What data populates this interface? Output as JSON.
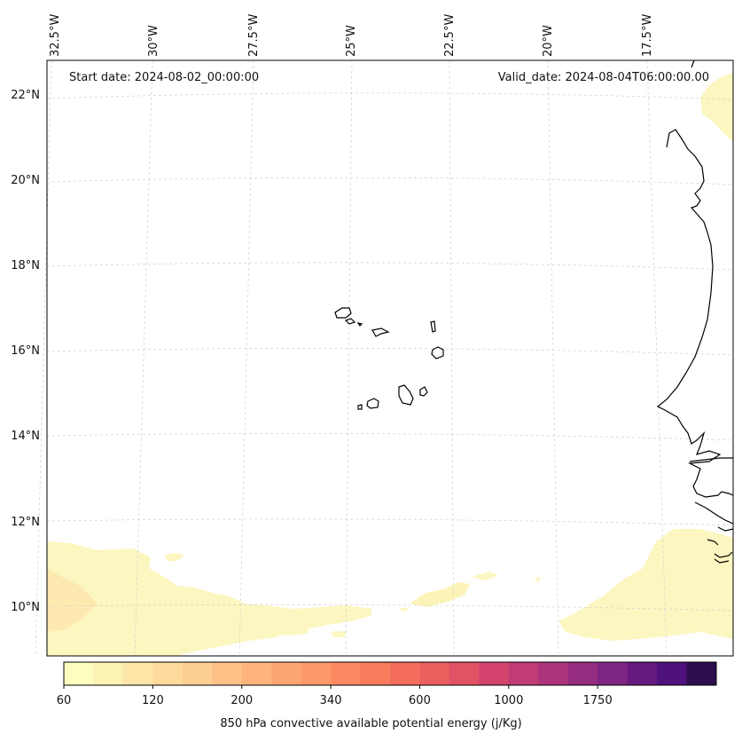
{
  "header": {
    "start_date": "Start date: 2024-08-02_00:00:00",
    "valid_date": "Valid_date: 2024-08-04T06:00:00.00"
  },
  "axes": {
    "lon_labels": [
      "32.5°W",
      "30°W",
      "27.5°W",
      "25°W",
      "22.5°W",
      "20°W",
      "17.5°W"
    ],
    "lat_labels": [
      "22°N",
      "20°N",
      "18°N",
      "16°N",
      "14°N",
      "12°N",
      "10°N"
    ]
  },
  "colorbar": {
    "label": "850 hPa convective available potential energy (j/Kg)",
    "tick_labels": [
      "60",
      "120",
      "200",
      "340",
      "600",
      "1000",
      "1750"
    ],
    "colors": [
      "#fcfdbf",
      "#fcf2b2",
      "#fde6a7",
      "#fedb9d",
      "#fecf92",
      "#fec287",
      "#feb47b",
      "#fea671",
      "#fd9868",
      "#fc8961",
      "#f97b5d",
      "#f46d5c",
      "#eb5f5f",
      "#e05264",
      "#d3436e",
      "#c13b75",
      "#ad347c",
      "#952c80",
      "#7e2482",
      "#661a80",
      "#4f117b",
      "#2e0d4e"
    ]
  },
  "features": {
    "islands": [
      "santo-antao",
      "sao-vicente",
      "santa-luzia",
      "sao-nicolau",
      "sal",
      "boa-vista",
      "santiago",
      "fogo",
      "brava",
      "maio"
    ],
    "coastline": "west-africa"
  }
}
